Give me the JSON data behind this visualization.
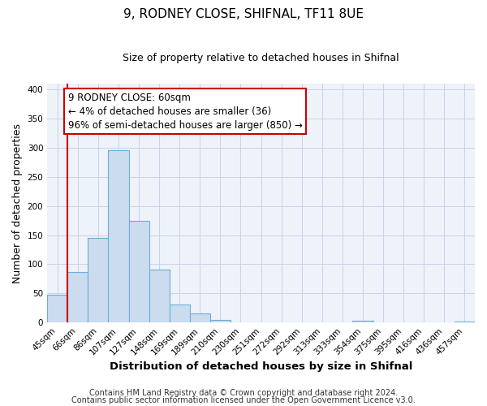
{
  "title1": "9, RODNEY CLOSE, SHIFNAL, TF11 8UE",
  "title2": "Size of property relative to detached houses in Shifnal",
  "xlabel": "Distribution of detached houses by size in Shifnal",
  "ylabel": "Number of detached properties",
  "bin_labels": [
    "45sqm",
    "66sqm",
    "86sqm",
    "107sqm",
    "127sqm",
    "148sqm",
    "169sqm",
    "189sqm",
    "210sqm",
    "230sqm",
    "251sqm",
    "272sqm",
    "292sqm",
    "313sqm",
    "333sqm",
    "354sqm",
    "375sqm",
    "395sqm",
    "416sqm",
    "436sqm",
    "457sqm"
  ],
  "bar_heights": [
    48,
    87,
    145,
    296,
    175,
    91,
    31,
    15,
    5,
    0,
    0,
    0,
    0,
    0,
    0,
    3,
    0,
    0,
    0,
    0,
    2
  ],
  "bar_color": "#ccdcef",
  "bar_edge_color": "#6baed6",
  "grid_color": "#c8d4e8",
  "background_color": "#eef2f9",
  "fig_background_color": "#ffffff",
  "annotation_lines": [
    "9 RODNEY CLOSE: 60sqm",
    "← 4% of detached houses are smaller (36)",
    "96% of semi-detached houses are larger (850) →"
  ],
  "annotation_box_edge": "#cc0000",
  "vline_color": "#cc0000",
  "vline_x_index": 1,
  "footer_lines": [
    "Contains HM Land Registry data © Crown copyright and database right 2024.",
    "Contains public sector information licensed under the Open Government Licence v3.0."
  ],
  "ylim": [
    0,
    410
  ],
  "title_fontsize": 11,
  "subtitle_fontsize": 9,
  "ylabel_fontsize": 9,
  "xlabel_fontsize": 9.5,
  "tick_fontsize": 7.5,
  "annot_fontsize": 8.5,
  "footer_fontsize": 7
}
